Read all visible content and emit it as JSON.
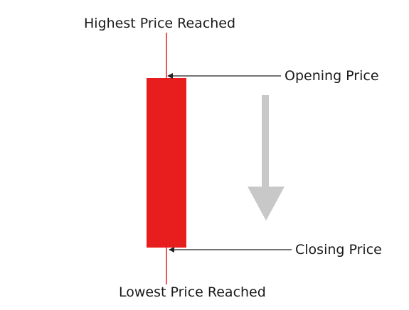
{
  "labels": {
    "highest": "Highest Price Reached",
    "opening": "Opening Price",
    "closing": "Closing Price",
    "lowest": "Lowest Price Reached"
  },
  "colors": {
    "candle_body": "#e81e1e",
    "wick": "#e81e1e",
    "pointer_line": "#222222",
    "direction_arrow": "#c8c8c8",
    "text": "#1a1a1a"
  },
  "direction": "down"
}
